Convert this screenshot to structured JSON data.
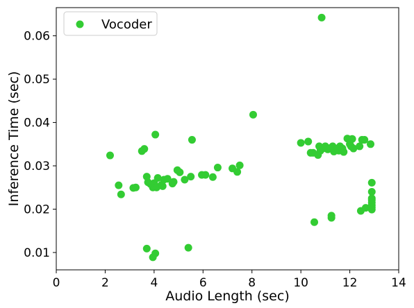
{
  "chart_data": {
    "type": "scatter",
    "title": "",
    "xlabel": "Audio Length (sec)",
    "ylabel": "Inference Time (sec)",
    "xlim": [
      0,
      14
    ],
    "ylim": [
      0.006,
      0.0665
    ],
    "xticks": [
      0,
      2,
      4,
      6,
      8,
      10,
      12,
      14
    ],
    "yticks": [
      0.01,
      0.02,
      0.03,
      0.04,
      0.05,
      0.06
    ],
    "xtick_labels": [
      "0",
      "2",
      "4",
      "6",
      "8",
      "10",
      "12",
      "14"
    ],
    "ytick_labels": [
      "0.01",
      "0.02",
      "0.03",
      "0.04",
      "0.05",
      "0.06"
    ],
    "grid": false,
    "legend_position": "upper-left",
    "series": [
      {
        "name": "Vocoder",
        "color": "#33cc33",
        "points": [
          [
            2.2,
            0.0324
          ],
          [
            2.55,
            0.0255
          ],
          [
            2.65,
            0.0234
          ],
          [
            3.15,
            0.0249
          ],
          [
            3.25,
            0.025
          ],
          [
            3.5,
            0.0334
          ],
          [
            3.6,
            0.0339
          ],
          [
            3.7,
            0.0275
          ],
          [
            3.75,
            0.0262
          ],
          [
            3.85,
            0.0258
          ],
          [
            3.95,
            0.025
          ],
          [
            4.0,
            0.026
          ],
          [
            4.05,
            0.0372
          ],
          [
            4.1,
            0.025
          ],
          [
            4.15,
            0.0272
          ],
          [
            4.3,
            0.0256
          ],
          [
            4.35,
            0.0253
          ],
          [
            4.4,
            0.0268
          ],
          [
            4.55,
            0.027
          ],
          [
            4.75,
            0.0259
          ],
          [
            4.8,
            0.0263
          ],
          [
            4.95,
            0.029
          ],
          [
            5.05,
            0.0285
          ],
          [
            5.25,
            0.0268
          ],
          [
            5.5,
            0.0275
          ],
          [
            5.55,
            0.036
          ],
          [
            5.95,
            0.0279
          ],
          [
            6.1,
            0.0279
          ],
          [
            6.4,
            0.0274
          ],
          [
            6.6,
            0.0296
          ],
          [
            7.2,
            0.0294
          ],
          [
            7.4,
            0.0286
          ],
          [
            7.5,
            0.0301
          ],
          [
            8.05,
            0.0418
          ],
          [
            3.7,
            0.0109
          ],
          [
            3.95,
            0.0089
          ],
          [
            4.05,
            0.0098
          ],
          [
            5.4,
            0.0111
          ],
          [
            10.0,
            0.0353
          ],
          [
            10.3,
            0.0356
          ],
          [
            10.4,
            0.033
          ],
          [
            10.5,
            0.033
          ],
          [
            10.7,
            0.0325
          ],
          [
            10.75,
            0.0345
          ],
          [
            10.8,
            0.0335
          ],
          [
            10.9,
            0.034
          ],
          [
            11.0,
            0.0345
          ],
          [
            11.1,
            0.0338
          ],
          [
            11.2,
            0.0341
          ],
          [
            11.3,
            0.0345
          ],
          [
            11.35,
            0.0333
          ],
          [
            11.5,
            0.034
          ],
          [
            11.55,
            0.0335
          ],
          [
            11.6,
            0.0345
          ],
          [
            11.7,
            0.034
          ],
          [
            11.75,
            0.0332
          ],
          [
            11.9,
            0.0363
          ],
          [
            12.0,
            0.035
          ],
          [
            12.05,
            0.0345
          ],
          [
            12.1,
            0.0362
          ],
          [
            12.15,
            0.034
          ],
          [
            12.4,
            0.0345
          ],
          [
            12.5,
            0.036
          ],
          [
            12.6,
            0.036
          ],
          [
            12.85,
            0.035
          ],
          [
            10.85,
            0.0642
          ],
          [
            10.55,
            0.017
          ],
          [
            11.25,
            0.0185
          ],
          [
            11.25,
            0.018
          ],
          [
            12.45,
            0.0196
          ],
          [
            12.65,
            0.0203
          ],
          [
            12.9,
            0.0261
          ],
          [
            12.9,
            0.024
          ],
          [
            12.9,
            0.0225
          ],
          [
            12.9,
            0.0221
          ],
          [
            12.9,
            0.0215
          ],
          [
            12.9,
            0.0209
          ],
          [
            12.9,
            0.0204
          ],
          [
            12.9,
            0.0199
          ]
        ]
      }
    ]
  }
}
